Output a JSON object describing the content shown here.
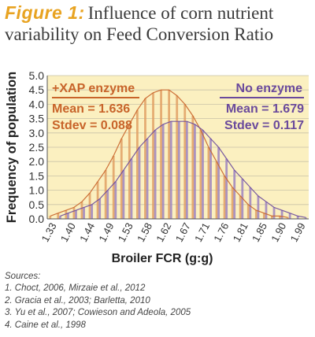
{
  "title": {
    "figure_label": "Figure 1:",
    "text_line1": "Influence of corn nutrient",
    "text_line2": "variability on Feed Conversion Ratio"
  },
  "colors": {
    "xap_series": "#c8642a",
    "no_enzyme_series": "#6a4a9c",
    "xap_bars": "#e0a064",
    "no_enzyme_bars": "#9c84c0",
    "plot_background": "#fbf0c0",
    "figure_label": "#e8a321"
  },
  "chart_data": {
    "type": "bar",
    "ylabel": "Frequency of population",
    "xlabel": "Broiler FCR (g:g)",
    "x_ticks": [
      "1.33",
      "1.40",
      "1.44",
      "1.49",
      "1.53",
      "1.58",
      "1.62",
      "1.67",
      "1.71",
      "1.76",
      "1.81",
      "1.85",
      "1.90",
      "1.99"
    ],
    "xlim": [
      1.33,
      1.99
    ],
    "ylim": [
      0,
      5.0
    ],
    "y_ticks": [
      0,
      0.5,
      1.0,
      1.5,
      2.0,
      2.5,
      3.0,
      3.5,
      4.0,
      4.5,
      5.0
    ],
    "grid": true,
    "series": [
      {
        "name": "+XAP enzyme",
        "mean_label": "Mean = 1.636",
        "stdev_label": "Stdev = 0.088",
        "x": [
          1.34,
          1.36,
          1.38,
          1.4,
          1.42,
          1.44,
          1.46,
          1.48,
          1.5,
          1.52,
          1.54,
          1.56,
          1.58,
          1.6,
          1.62,
          1.64,
          1.66,
          1.68,
          1.7,
          1.72,
          1.74,
          1.76,
          1.78,
          1.8,
          1.82,
          1.84,
          1.86,
          1.88,
          1.9,
          1.92,
          1.94
        ],
        "values": [
          0.1,
          0.2,
          0.3,
          0.4,
          0.6,
          0.9,
          1.3,
          1.7,
          2.2,
          2.8,
          3.3,
          3.8,
          4.2,
          4.4,
          4.5,
          4.5,
          4.3,
          4.0,
          3.6,
          3.1,
          2.5,
          2.0,
          1.5,
          1.1,
          0.8,
          0.5,
          0.3,
          0.2,
          0.1,
          0.1,
          0.05
        ]
      },
      {
        "name": "No enzyme",
        "mean_label": "Mean = 1.679",
        "stdev_label": "Stdev = 0.117",
        "x": [
          1.36,
          1.38,
          1.4,
          1.42,
          1.44,
          1.46,
          1.48,
          1.5,
          1.52,
          1.54,
          1.56,
          1.58,
          1.6,
          1.62,
          1.64,
          1.66,
          1.68,
          1.7,
          1.72,
          1.74,
          1.76,
          1.78,
          1.8,
          1.82,
          1.84,
          1.86,
          1.88,
          1.9,
          1.92,
          1.94,
          1.96,
          1.98
        ],
        "values": [
          0.1,
          0.2,
          0.3,
          0.4,
          0.5,
          0.7,
          1.0,
          1.3,
          1.7,
          2.1,
          2.5,
          2.8,
          3.1,
          3.3,
          3.4,
          3.4,
          3.4,
          3.3,
          3.1,
          2.8,
          2.5,
          2.1,
          1.7,
          1.4,
          1.1,
          0.8,
          0.6,
          0.4,
          0.3,
          0.2,
          0.1,
          0.05
        ]
      }
    ]
  },
  "sources": {
    "heading": "Sources:",
    "items": [
      "1. Choct, 2006, Mirzaie et al., 2012",
      "2. Gracia et al., 2003; Barletta, 2010",
      "3. Yu et al., 2007; Cowieson and Adeola, 2005",
      "4. Caine et al., 1998"
    ]
  }
}
